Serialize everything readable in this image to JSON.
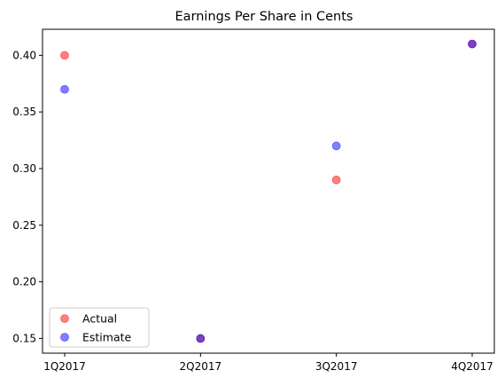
{
  "chart_data": {
    "type": "scatter",
    "title": "Earnings Per Share in Cents",
    "xlabel": "",
    "ylabel": "",
    "categories": [
      "1Q2017",
      "2Q2017",
      "3Q2017",
      "4Q2017"
    ],
    "series": [
      {
        "name": "Actual",
        "color": "#ff0000",
        "values": [
          0.4,
          0.15,
          0.29,
          0.41
        ]
      },
      {
        "name": "Estimate",
        "color": "#0000ff",
        "values": [
          0.37,
          0.15,
          0.32,
          0.41
        ]
      }
    ],
    "yticks": [
      "0.15",
      "0.20",
      "0.25",
      "0.30",
      "0.35",
      "0.40"
    ],
    "ylim": [
      0.137,
      0.423
    ],
    "grid": false,
    "legend_position": "lower-left"
  }
}
